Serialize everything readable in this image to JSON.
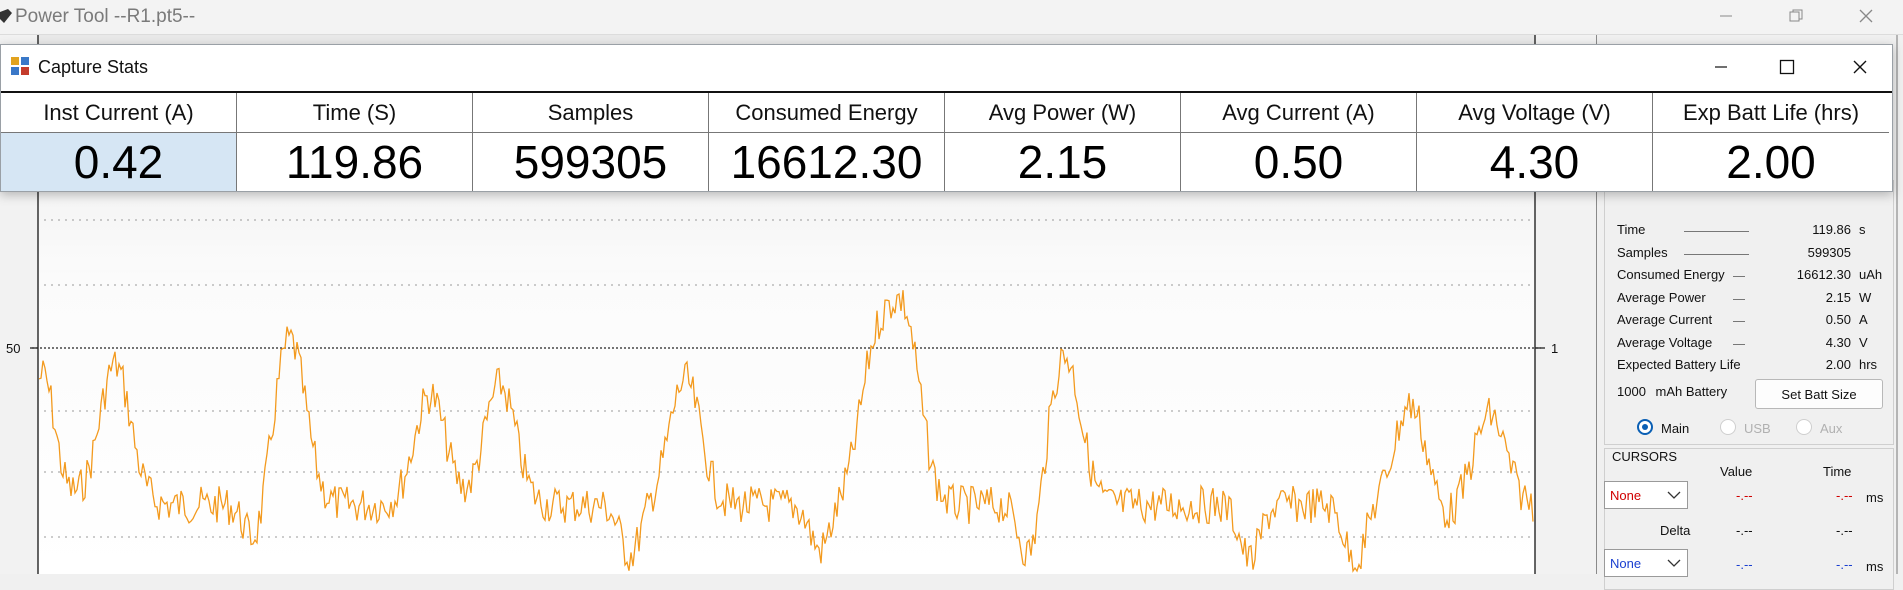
{
  "main_window": {
    "title": "Power Tool --R1.pt5--"
  },
  "capture_stats": {
    "title": "Capture Stats",
    "columns": [
      {
        "header": "Inst Current (A)",
        "value": "0.42"
      },
      {
        "header": "Time (S)",
        "value": "119.86"
      },
      {
        "header": "Samples",
        "value": "599305"
      },
      {
        "header": "Consumed Energy",
        "value": "16612.30"
      },
      {
        "header": "Avg Power (W)",
        "value": "2.15"
      },
      {
        "header": "Avg Current (A)",
        "value": "0.50"
      },
      {
        "header": "Avg Voltage (V)",
        "value": "4.30"
      },
      {
        "header": "Exp Batt Life (hrs)",
        "value": "2.00"
      }
    ]
  },
  "chart": {
    "y_left_tick": "50",
    "y_right_tick": "1",
    "trace_color": "#f39a1e"
  },
  "stats_panel": {
    "rows": [
      {
        "label": "Time",
        "value": "119.86",
        "unit": "s"
      },
      {
        "label": "Samples",
        "value": "599305",
        "unit": ""
      },
      {
        "label": "Consumed Energy",
        "value": "16612.30",
        "unit": "uAh"
      },
      {
        "label": "Average Power",
        "value": "2.15",
        "unit": "W"
      },
      {
        "label": "Average Current",
        "value": "0.50",
        "unit": "A"
      },
      {
        "label": "Average Voltage",
        "value": "4.30",
        "unit": "V"
      },
      {
        "label": "Expected Battery Life",
        "value": "2.00",
        "unit": "hrs"
      }
    ],
    "battery_capacity": "1000",
    "battery_label": "mAh Battery",
    "set_batt_button": "Set Batt Size",
    "radios": [
      {
        "label": "Main",
        "selected": true
      },
      {
        "label": "USB",
        "selected": false
      },
      {
        "label": "Aux",
        "selected": false
      }
    ]
  },
  "cursors": {
    "title": "CURSORS",
    "col_value": "Value",
    "col_time": "Time",
    "cursor1_select": "None",
    "cursor1_value": "-.--",
    "cursor1_time": "-.--",
    "cursor1_unit": "ms",
    "delta_label": "Delta",
    "delta_value": "-.--",
    "delta_time": "-.--",
    "cursor2_select": "None",
    "cursor2_value": "-.--",
    "cursor2_time": "-.--",
    "cursor2_unit": "ms"
  }
}
